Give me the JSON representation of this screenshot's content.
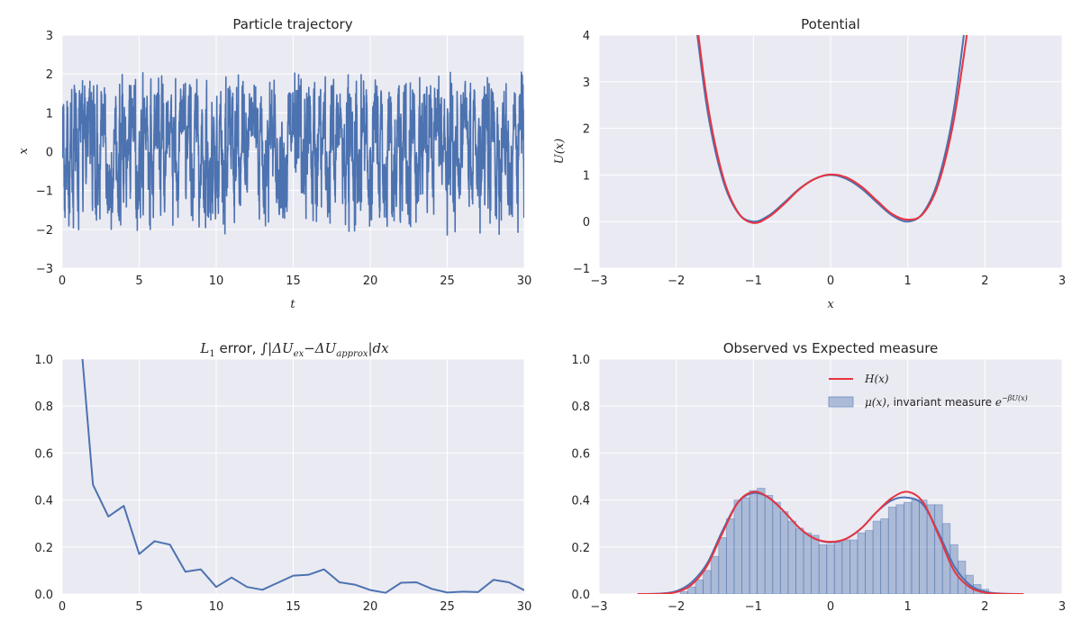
{
  "chart_data": [
    {
      "type": "line",
      "title": "Particle trajectory",
      "xlabel": "t",
      "ylabel": "x",
      "xlim": [
        0,
        30
      ],
      "ylim": [
        -3,
        3
      ],
      "xticks": [
        "0",
        "5",
        "10",
        "15",
        "20",
        "25",
        "30"
      ],
      "yticks": [
        "−3",
        "−2",
        "−1",
        "0",
        "1",
        "2",
        "3"
      ],
      "grid": true,
      "series": [
        {
          "color": "#4c72b0",
          "description": "noisy trajectory switching between wells near x=-1 and x=+1, range about -2.1 to 2.0"
        }
      ]
    },
    {
      "type": "line",
      "title": "Potential",
      "xlabel": "x",
      "ylabel": "U(x)",
      "xlim": [
        -3,
        3
      ],
      "ylim": [
        -1,
        4
      ],
      "xticks": [
        "−3",
        "−2",
        "−1",
        "0",
        "1",
        "2",
        "3"
      ],
      "yticks": [
        "−1",
        "0",
        "1",
        "2",
        "3",
        "4"
      ],
      "grid": true,
      "series": [
        {
          "color": "#4c72b0",
          "x": [
            -1.8,
            -1.6,
            -1.4,
            -1.2,
            -1.0,
            -0.8,
            -0.6,
            -0.4,
            -0.2,
            0.0,
            0.2,
            0.4,
            0.6,
            0.8,
            1.0,
            1.2,
            1.4,
            1.6,
            1.8
          ],
          "y": [
            5.0,
            2.43,
            0.92,
            0.19,
            0.0,
            0.13,
            0.41,
            0.71,
            0.92,
            1.0,
            0.92,
            0.71,
            0.41,
            0.13,
            0.0,
            0.19,
            0.92,
            2.43,
            5.0
          ]
        },
        {
          "color": "#e8333f",
          "x": [
            -1.8,
            -1.6,
            -1.4,
            -1.2,
            -1.0,
            -0.8,
            -0.6,
            -0.4,
            -0.2,
            0.0,
            0.2,
            0.4,
            0.6,
            0.8,
            1.0,
            1.2,
            1.4,
            1.6,
            1.8
          ],
          "y": [
            5.2,
            2.6,
            1.0,
            0.2,
            -0.03,
            0.1,
            0.38,
            0.7,
            0.92,
            1.01,
            0.95,
            0.75,
            0.45,
            0.16,
            0.04,
            0.17,
            0.82,
            2.2,
            4.4
          ]
        }
      ]
    },
    {
      "type": "line",
      "title": "L₁ error, ∫|ΔU_ex−ΔU_approx|dx",
      "title_parts": {
        "a": "L",
        "a_sub": "1",
        "b": " error, ",
        "c": "∫|ΔU",
        "c_sub": "ex",
        "d": "−ΔU",
        "d_sub": "approx",
        "e": "|dx"
      },
      "xlim": [
        0,
        30
      ],
      "ylim": [
        0,
        1
      ],
      "xticks": [
        "0",
        "5",
        "10",
        "15",
        "20",
        "25",
        "30"
      ],
      "yticks": [
        "0.0",
        "0.2",
        "0.4",
        "0.6",
        "0.8",
        "1.0"
      ],
      "grid": true,
      "series": [
        {
          "color": "#4c72b0",
          "x": [
            1,
            2,
            3,
            4,
            5,
            6,
            7,
            8,
            9,
            10,
            11,
            12,
            13,
            14,
            15,
            16,
            17,
            18,
            19,
            20,
            21,
            22,
            23,
            24,
            25,
            26,
            27,
            28,
            29,
            30
          ],
          "y": [
            1.25,
            0.465,
            0.33,
            0.375,
            0.17,
            0.225,
            0.21,
            0.095,
            0.105,
            0.03,
            0.07,
            0.03,
            0.018,
            0.048,
            0.078,
            0.082,
            0.105,
            0.05,
            0.04,
            0.017,
            0.005,
            0.048,
            0.05,
            0.022,
            0.006,
            0.01,
            0.008,
            0.06,
            0.05,
            0.016
          ]
        }
      ]
    },
    {
      "type": "area",
      "title": "Observed vs Expected measure",
      "xlim": [
        -3,
        3
      ],
      "ylim": [
        0,
        1
      ],
      "xticks": [
        "−3",
        "−2",
        "−1",
        "0",
        "1",
        "2",
        "3"
      ],
      "yticks": [
        "0.0",
        "0.2",
        "0.4",
        "0.6",
        "0.8",
        "1.0"
      ],
      "grid": true,
      "legend_position": "upper-right",
      "legend": [
        {
          "label": "H(x)",
          "color": "#e8333f",
          "kind": "line"
        },
        {
          "label_prefix": "μ(x)",
          "label_mid": ", invariant measure ",
          "label_suffix": "e",
          "label_sup": "−βU(x)",
          "color": "#4c72b0",
          "kind": "patch"
        }
      ],
      "histogram": {
        "color": "#4c72b0",
        "bin_width": 0.1,
        "x_start": -1.95,
        "values": [
          0.01,
          0.03,
          0.06,
          0.1,
          0.16,
          0.24,
          0.32,
          0.4,
          0.41,
          0.44,
          0.45,
          0.42,
          0.39,
          0.35,
          0.31,
          0.28,
          0.26,
          0.25,
          0.21,
          0.21,
          0.22,
          0.23,
          0.23,
          0.26,
          0.27,
          0.31,
          0.32,
          0.37,
          0.38,
          0.39,
          0.4,
          0.4,
          0.38,
          0.38,
          0.3,
          0.21,
          0.14,
          0.08,
          0.04,
          0.02
        ]
      },
      "series": [
        {
          "color": "#4c72b0",
          "x": [
            -2.5,
            -2.2,
            -2.0,
            -1.8,
            -1.6,
            -1.4,
            -1.2,
            -1.0,
            -0.8,
            -0.6,
            -0.4,
            -0.2,
            0.0,
            0.2,
            0.4,
            0.6,
            0.8,
            1.0,
            1.2,
            1.4,
            1.6,
            1.8,
            2.0,
            2.2,
            2.5
          ],
          "y": [
            0.0,
            0.002,
            0.012,
            0.05,
            0.13,
            0.27,
            0.39,
            0.43,
            0.41,
            0.35,
            0.28,
            0.235,
            0.22,
            0.235,
            0.28,
            0.35,
            0.4,
            0.41,
            0.38,
            0.26,
            0.12,
            0.04,
            0.01,
            0.002,
            0.0
          ]
        },
        {
          "color": "#e8333f",
          "x": [
            -2.5,
            -2.2,
            -2.0,
            -1.8,
            -1.6,
            -1.4,
            -1.2,
            -1.0,
            -0.8,
            -0.6,
            -0.4,
            -0.2,
            0.0,
            0.2,
            0.4,
            0.6,
            0.8,
            1.0,
            1.2,
            1.4,
            1.6,
            1.8,
            2.0,
            2.2,
            2.5
          ],
          "y": [
            0.0,
            0.001,
            0.008,
            0.04,
            0.12,
            0.26,
            0.39,
            0.435,
            0.41,
            0.35,
            0.28,
            0.235,
            0.222,
            0.235,
            0.28,
            0.35,
            0.41,
            0.435,
            0.39,
            0.25,
            0.1,
            0.03,
            0.006,
            0.001,
            0.0
          ]
        }
      ]
    }
  ]
}
